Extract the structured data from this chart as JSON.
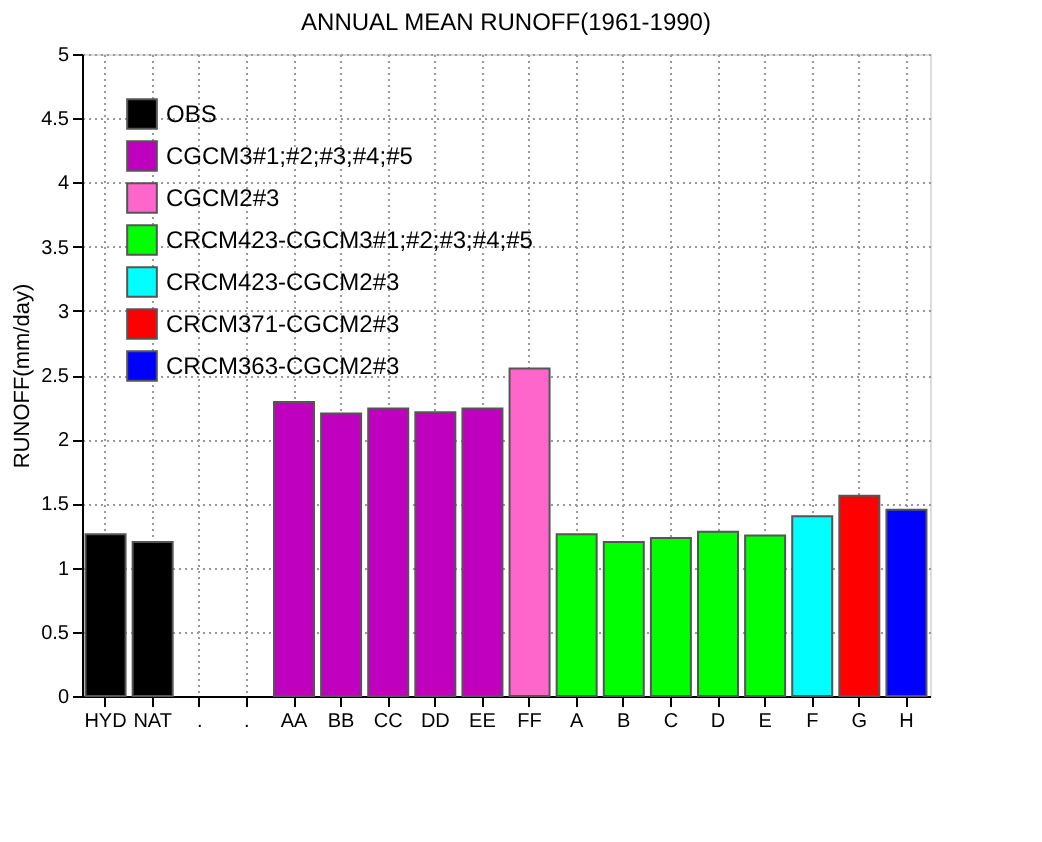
{
  "chart_data": {
    "type": "bar",
    "title": "ANNUAL MEAN RUNOFF(1961-1990)",
    "ylabel": "RUNOFF(mm/day)",
    "categories": [
      "HYD",
      "NAT",
      ".",
      ".",
      "AA",
      "BB",
      "CC",
      "DD",
      "EE",
      "FF",
      "A",
      "B",
      "C",
      "D",
      "E",
      "F",
      "G",
      "H"
    ],
    "series": [
      {
        "name": "OBS",
        "color": "#000000",
        "values": [
          1.26,
          1.2,
          null,
          null,
          null,
          null,
          null,
          null,
          null,
          null,
          null,
          null,
          null,
          null,
          null,
          null,
          null,
          null
        ]
      },
      {
        "name": "CGCM3#1;#2;#3;#4;#5",
        "color": "#bf00bf",
        "values": [
          null,
          null,
          null,
          null,
          2.29,
          2.2,
          2.24,
          2.21,
          2.24,
          null,
          null,
          null,
          null,
          null,
          null,
          null,
          null,
          null
        ]
      },
      {
        "name": "CGCM2#3",
        "color": "#ff66cc",
        "values": [
          null,
          null,
          null,
          null,
          null,
          null,
          null,
          null,
          null,
          2.55,
          null,
          null,
          null,
          null,
          null,
          null,
          null,
          null
        ]
      },
      {
        "name": "CRCM423-CGCM3#1;#2;#3;#4;#5",
        "color": "#00ff00",
        "values": [
          null,
          null,
          null,
          null,
          null,
          null,
          null,
          null,
          null,
          null,
          1.26,
          1.2,
          1.23,
          1.28,
          1.25,
          null,
          null,
          null
        ]
      },
      {
        "name": "CRCM423-CGCM2#3",
        "color": "#00ffff",
        "values": [
          null,
          null,
          null,
          null,
          null,
          null,
          null,
          null,
          null,
          null,
          null,
          null,
          null,
          null,
          null,
          1.4,
          null,
          null
        ]
      },
      {
        "name": "CRCM371-CGCM2#3",
        "color": "#ff0000",
        "values": [
          null,
          null,
          null,
          null,
          null,
          null,
          null,
          null,
          null,
          null,
          null,
          null,
          null,
          null,
          null,
          null,
          1.56,
          null
        ]
      },
      {
        "name": "CRCM363-CGCM2#3",
        "color": "#0000ff",
        "values": [
          null,
          null,
          null,
          null,
          null,
          null,
          null,
          null,
          null,
          null,
          null,
          null,
          null,
          null,
          null,
          null,
          null,
          1.45
        ]
      }
    ],
    "ylim": [
      0,
      5
    ],
    "yticks": [
      0,
      0.5,
      1,
      1.5,
      2,
      2.5,
      3,
      3.5,
      4,
      4.5,
      5
    ],
    "grid": true,
    "legend": "top left"
  }
}
